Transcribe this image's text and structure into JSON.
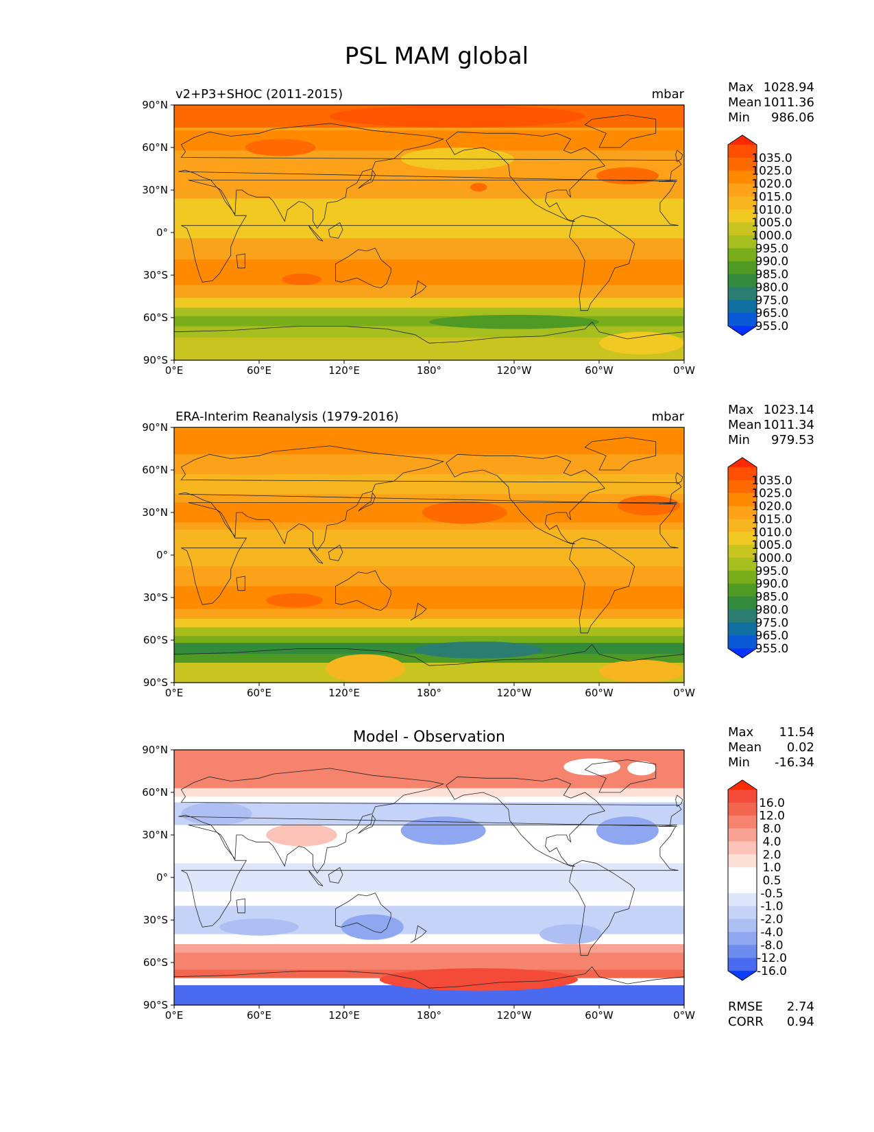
{
  "title": "PSL MAM global",
  "lon_ticks": [
    "0°E",
    "60°E",
    "120°E",
    "180°",
    "120°W",
    "60°W",
    "0°W"
  ],
  "lat_ticks": [
    "90°N",
    "60°N",
    "30°N",
    "0°",
    "30°S",
    "60°S",
    "90°S"
  ],
  "panels": [
    {
      "id": "model",
      "left_title": "v2+P3+SHOC (2011-2015)",
      "center_title": "",
      "right_title": "mbar",
      "stats": [
        {
          "label": "Max",
          "value": "1028.94"
        },
        {
          "label": "Mean",
          "value": "1011.36"
        },
        {
          "label": "Min",
          "value": "986.06"
        }
      ],
      "colorbar": {
        "labels": [
          "1035.0",
          "1025.0",
          "1020.0",
          "1015.0",
          "1010.0",
          "1005.0",
          "1000.0",
          "995.0",
          "990.0",
          "985.0",
          "980.0",
          "975.0",
          "965.0",
          "955.0"
        ],
        "colors": [
          "#ff2a00",
          "#ff4f00",
          "#ff6a00",
          "#ff8a00",
          "#ffa21a",
          "#f7b51f",
          "#f2c823",
          "#c9c420",
          "#a6bf1f",
          "#79ae1a",
          "#4f9a25",
          "#328a3c",
          "#2a7d70",
          "#0f6fa0",
          "#0a5ad8",
          "#0033ff"
        ]
      },
      "footer": []
    },
    {
      "id": "obs",
      "left_title": "ERA-Interim Reanalysis (1979-2016)",
      "center_title": "",
      "right_title": "mbar",
      "stats": [
        {
          "label": "Max",
          "value": "1023.14"
        },
        {
          "label": "Mean",
          "value": "1011.34"
        },
        {
          "label": "Min",
          "value": "979.53"
        }
      ],
      "colorbar": {
        "labels": [
          "1035.0",
          "1025.0",
          "1020.0",
          "1015.0",
          "1010.0",
          "1005.0",
          "1000.0",
          "995.0",
          "990.0",
          "985.0",
          "980.0",
          "975.0",
          "965.0",
          "955.0"
        ],
        "colors": [
          "#ff2a00",
          "#ff4f00",
          "#ff6a00",
          "#ff8a00",
          "#ffa21a",
          "#f7b51f",
          "#f2c823",
          "#c9c420",
          "#a6bf1f",
          "#79ae1a",
          "#4f9a25",
          "#328a3c",
          "#2a7d70",
          "#0f6fa0",
          "#0a5ad8",
          "#0033ff"
        ]
      },
      "footer": []
    },
    {
      "id": "diff",
      "left_title": "",
      "center_title": "Model - Observation",
      "right_title": "",
      "stats": [
        {
          "label": "Max",
          "value": "11.54"
        },
        {
          "label": "Mean",
          "value": "0.02"
        },
        {
          "label": "Min",
          "value": "-16.34"
        }
      ],
      "colorbar": {
        "labels": [
          "16.0",
          "12.0",
          "8.0",
          "4.0",
          "2.0",
          "1.0",
          "0.5",
          "-0.5",
          "-1.0",
          "-2.0",
          "-4.0",
          "-8.0",
          "-12.0",
          "-16.0"
        ],
        "colors": [
          "#ff2a00",
          "#f44a38",
          "#f2664f",
          "#f5836d",
          "#f8a393",
          "#fbc3b8",
          "#fde0d8",
          "#ffffff",
          "#ffffff",
          "#dde6fb",
          "#c5d3f8",
          "#aebff3",
          "#8ea7f0",
          "#6e8ced",
          "#4a6af0",
          "#0b3dff"
        ]
      },
      "footer": [
        {
          "label": "RMSE",
          "value": "2.74"
        },
        {
          "label": "CORR",
          "value": "0.94"
        }
      ]
    }
  ],
  "fields": {
    "model": {
      "base": "#f9a31c",
      "bands": [
        {
          "lat": 82,
          "h": 16,
          "color": "#ff6a00"
        },
        {
          "lat": 65,
          "h": 14,
          "color": "#ff8a00"
        },
        {
          "lat": 40,
          "h": 18,
          "color": "#ffa21a"
        },
        {
          "lat": 10,
          "h": 28,
          "color": "#f2c823"
        },
        {
          "lat": -28,
          "h": 18,
          "color": "#ff8a00"
        },
        {
          "lat": -50,
          "h": 8,
          "color": "#f2c823"
        },
        {
          "lat": -57,
          "h": 8,
          "color": "#a6bf1f"
        },
        {
          "lat": -63,
          "h": 8,
          "color": "#79ae1a"
        },
        {
          "lat": -70,
          "h": 8,
          "color": "#a6bf1f"
        },
        {
          "lat": -82,
          "h": 16,
          "color": "#c9c420"
        }
      ],
      "blobs": [
        {
          "lon": 200,
          "lat": 82,
          "rx": 90,
          "ry": 8,
          "color": "#ff5500"
        },
        {
          "lon": 75,
          "lat": 60,
          "rx": 25,
          "ry": 6,
          "color": "#ff6a00"
        },
        {
          "lon": 200,
          "lat": 52,
          "rx": 40,
          "ry": 8,
          "color": "#f2c823"
        },
        {
          "lon": 320,
          "lat": 40,
          "rx": 22,
          "ry": 6,
          "color": "#ff6a00"
        },
        {
          "lon": 215,
          "lat": 32,
          "rx": 6,
          "ry": 3,
          "color": "#ff6a00"
        },
        {
          "lon": 90,
          "lat": -33,
          "rx": 14,
          "ry": 4,
          "color": "#ff6a00"
        },
        {
          "lon": 240,
          "lat": -63,
          "rx": 60,
          "ry": 5,
          "color": "#4f9a25"
        },
        {
          "lon": 330,
          "lat": -78,
          "rx": 30,
          "ry": 8,
          "color": "#f2c823"
        }
      ]
    },
    "obs": {
      "base": "#fba21a",
      "bands": [
        {
          "lat": 80,
          "h": 18,
          "color": "#ff8a00"
        },
        {
          "lat": 50,
          "h": 14,
          "color": "#f7b51f"
        },
        {
          "lat": 30,
          "h": 14,
          "color": "#ff8a00"
        },
        {
          "lat": 5,
          "h": 26,
          "color": "#f7b51f"
        },
        {
          "lat": -30,
          "h": 16,
          "color": "#ff8a00"
        },
        {
          "lat": -48,
          "h": 6,
          "color": "#f2c823"
        },
        {
          "lat": -54,
          "h": 6,
          "color": "#a6bf1f"
        },
        {
          "lat": -60,
          "h": 6,
          "color": "#79ae1a"
        },
        {
          "lat": -66,
          "h": 8,
          "color": "#328a3c"
        },
        {
          "lat": -73,
          "h": 6,
          "color": "#4f9a25"
        },
        {
          "lat": -83,
          "h": 14,
          "color": "#c9c420"
        }
      ],
      "blobs": [
        {
          "lon": 205,
          "lat": 30,
          "rx": 30,
          "ry": 8,
          "color": "#ff6a00"
        },
        {
          "lon": 335,
          "lat": 35,
          "rx": 22,
          "ry": 7,
          "color": "#ff6a00"
        },
        {
          "lon": 85,
          "lat": -32,
          "rx": 20,
          "ry": 5,
          "color": "#ff6a00"
        },
        {
          "lon": 215,
          "lat": -67,
          "rx": 45,
          "ry": 6,
          "color": "#2a7d70"
        },
        {
          "lon": 135,
          "lat": -80,
          "rx": 28,
          "ry": 10,
          "color": "#f7b51f"
        },
        {
          "lon": 330,
          "lat": -82,
          "rx": 30,
          "ry": 8,
          "color": "#f7b51f"
        }
      ]
    },
    "diff": {
      "base": "#ffffff",
      "bands": [
        {
          "lat": 76,
          "h": 28,
          "color": "#f5836d"
        },
        {
          "lat": 60,
          "h": 6,
          "color": "#fde0d8"
        },
        {
          "lat": 45,
          "h": 16,
          "color": "#c5d3f8"
        },
        {
          "lat": 20,
          "h": 20,
          "color": "#ffffff"
        },
        {
          "lat": 0,
          "h": 20,
          "color": "#dde6fb"
        },
        {
          "lat": -30,
          "h": 20,
          "color": "#c5d3f8"
        },
        {
          "lat": -45,
          "h": 6,
          "color": "#ffffff"
        },
        {
          "lat": -50,
          "h": 6,
          "color": "#f8a393"
        },
        {
          "lat": -60,
          "h": 14,
          "color": "#f5836d"
        },
        {
          "lat": -68,
          "h": 6,
          "color": "#f2664f"
        },
        {
          "lat": -83,
          "h": 14,
          "color": "#4a6af0"
        }
      ],
      "blobs": [
        {
          "lon": 190,
          "lat": 33,
          "rx": 30,
          "ry": 10,
          "color": "#8ea7f0"
        },
        {
          "lon": 320,
          "lat": 33,
          "rx": 22,
          "ry": 10,
          "color": "#8ea7f0"
        },
        {
          "lon": 30,
          "lat": 45,
          "rx": 25,
          "ry": 8,
          "color": "#aebff3"
        },
        {
          "lon": 90,
          "lat": 30,
          "rx": 25,
          "ry": 8,
          "color": "#fbc3b8"
        },
        {
          "lon": 140,
          "lat": -35,
          "rx": 22,
          "ry": 9,
          "color": "#8ea7f0"
        },
        {
          "lon": 60,
          "lat": -35,
          "rx": 28,
          "ry": 6,
          "color": "#aebff3"
        },
        {
          "lon": 280,
          "lat": -40,
          "rx": 22,
          "ry": 7,
          "color": "#aebff3"
        },
        {
          "lon": 215,
          "lat": -72,
          "rx": 70,
          "ry": 8,
          "color": "#f44a38"
        },
        {
          "lon": 295,
          "lat": 78,
          "rx": 20,
          "ry": 6,
          "color": "#ffffff"
        },
        {
          "lon": 330,
          "lat": 77,
          "rx": 10,
          "ry": 5,
          "color": "#ffffff"
        }
      ]
    }
  }
}
